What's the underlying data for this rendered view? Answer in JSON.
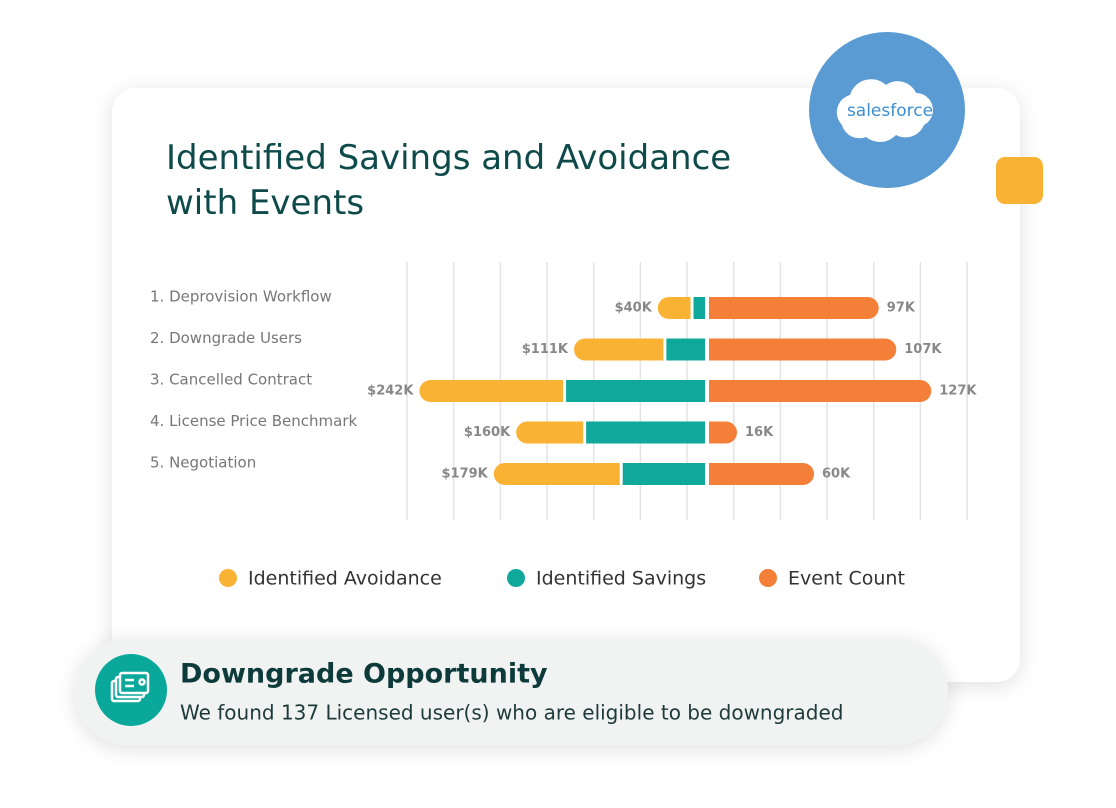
{
  "chart_data": {
    "type": "diverging-bar",
    "title": "Identified Savings and Avoidance with Events",
    "categories": [
      "1. Deprovision Workflow",
      "2. Downgrade Users",
      "3. Cancelled Contract",
      "4. License Price Benchmark",
      "5. Negotiation"
    ],
    "series": [
      {
        "name": "Identified Avoidance",
        "color": "#f9b233",
        "side": "left",
        "values": [
          29,
          77,
          123,
          58,
          108
        ]
      },
      {
        "name": "Identified Savings",
        "color": "#0fa89a",
        "side": "left",
        "values": [
          11,
          34,
          119,
          102,
          71
        ]
      },
      {
        "name": "Event Count",
        "color": "#f47f38",
        "side": "right",
        "values": [
          97,
          107,
          127,
          16,
          60
        ],
        "value_labels": [
          "97K",
          "107K",
          "127K",
          "16K",
          "60K"
        ]
      }
    ],
    "totals": [
      40,
      111,
      242,
      160,
      179
    ],
    "total_labels": [
      "$40K",
      "$111K",
      "$242K",
      "$160K",
      "$179K"
    ]
  },
  "logo": {
    "text": "salesforce"
  },
  "notification": {
    "title": "Downgrade Opportunity",
    "text": "We found 137 Licensed user(s) who are eligible to be downgraded"
  }
}
